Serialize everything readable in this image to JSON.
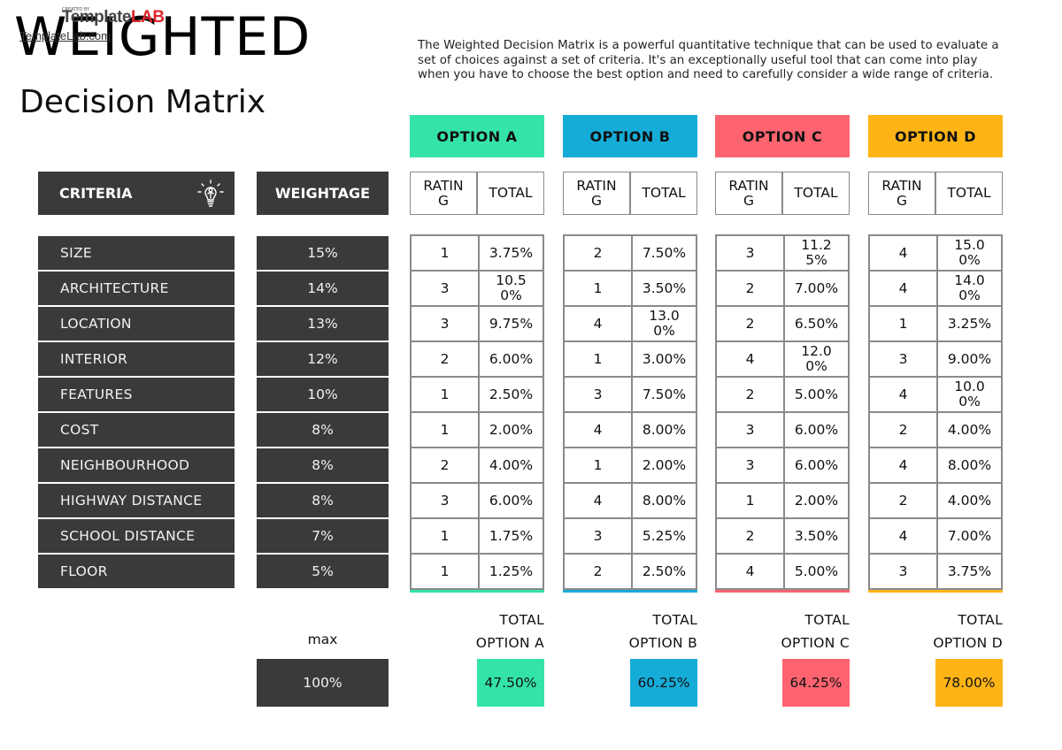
{
  "header": {
    "title_line1": "WEIGHTED",
    "title_line2": "Decision Matrix",
    "logo_text": "Template",
    "logo_accent": "LAB",
    "logo_small": "CREATED BY",
    "logo_link": "TemplateLab.com",
    "description": "The Weighted Decision Matrix is a powerful quantitative technique that can be used to evaluate a set of choices against a set of criteria. It's an exceptionally useful tool that can come into play when you have to choose the best option and need to carefully consider a wide range of criteria."
  },
  "columns": {
    "criteria_label": "CRITERIA",
    "criteria_icon": "lightbulb-icon",
    "weightage_label": "WEIGHTAGE",
    "rating_label": "RATING",
    "total_label": "TOTAL"
  },
  "criteria": [
    {
      "name": "SIZE",
      "weight": "15%"
    },
    {
      "name": "ARCHITECTURE",
      "weight": "14%"
    },
    {
      "name": "LOCATION",
      "weight": "13%"
    },
    {
      "name": "INTERIOR",
      "weight": "12%"
    },
    {
      "name": "FEATURES",
      "weight": "10%"
    },
    {
      "name": "COST",
      "weight": "8%"
    },
    {
      "name": "NEIGHBOURHOOD",
      "weight": "8%"
    },
    {
      "name": "HIGHWAY DISTANCE",
      "weight": "8%"
    },
    {
      "name": "SCHOOL DISTANCE",
      "weight": "7%"
    },
    {
      "name": "FLOOR",
      "weight": "5%"
    }
  ],
  "options": [
    {
      "label": "OPTION A",
      "color": "#34e3aa",
      "total_label_1": "TOTAL",
      "total_label_2": "OPTION A",
      "total": "47.50%",
      "rows": [
        {
          "rating": "1",
          "total": "3.75%"
        },
        {
          "rating": "3",
          "total": "10.50%"
        },
        {
          "rating": "3",
          "total": "9.75%"
        },
        {
          "rating": "2",
          "total": "6.00%"
        },
        {
          "rating": "1",
          "total": "2.50%"
        },
        {
          "rating": "1",
          "total": "2.00%"
        },
        {
          "rating": "2",
          "total": "4.00%"
        },
        {
          "rating": "3",
          "total": "6.00%"
        },
        {
          "rating": "1",
          "total": "1.75%"
        },
        {
          "rating": "1",
          "total": "1.25%"
        }
      ]
    },
    {
      "label": "OPTION B",
      "color": "#16acd8",
      "total_label_1": "TOTAL",
      "total_label_2": "OPTION B",
      "total": "60.25%",
      "rows": [
        {
          "rating": "2",
          "total": "7.50%"
        },
        {
          "rating": "1",
          "total": "3.50%"
        },
        {
          "rating": "4",
          "total": "13.00%"
        },
        {
          "rating": "1",
          "total": "3.00%"
        },
        {
          "rating": "3",
          "total": "7.50%"
        },
        {
          "rating": "4",
          "total": "8.00%"
        },
        {
          "rating": "1",
          "total": "2.00%"
        },
        {
          "rating": "4",
          "total": "8.00%"
        },
        {
          "rating": "3",
          "total": "5.25%"
        },
        {
          "rating": "2",
          "total": "2.50%"
        }
      ]
    },
    {
      "label": "OPTION C",
      "color": "#fe6470",
      "total_label_1": "TOTAL",
      "total_label_2": "OPTION C",
      "total": "64.25%",
      "rows": [
        {
          "rating": "3",
          "total": "11.25%"
        },
        {
          "rating": "2",
          "total": "7.00%"
        },
        {
          "rating": "2",
          "total": "6.50%"
        },
        {
          "rating": "4",
          "total": "12.00%"
        },
        {
          "rating": "2",
          "total": "5.00%"
        },
        {
          "rating": "3",
          "total": "6.00%"
        },
        {
          "rating": "3",
          "total": "6.00%"
        },
        {
          "rating": "1",
          "total": "2.00%"
        },
        {
          "rating": "2",
          "total": "3.50%"
        },
        {
          "rating": "4",
          "total": "5.00%"
        }
      ]
    },
    {
      "label": "OPTION D",
      "color": "#ffb416",
      "total_label_1": "TOTAL",
      "total_label_2": "OPTION D",
      "total": "78.00%",
      "rows": [
        {
          "rating": "4",
          "total": "15.00%"
        },
        {
          "rating": "4",
          "total": "14.00%"
        },
        {
          "rating": "1",
          "total": "3.25%"
        },
        {
          "rating": "3",
          "total": "9.00%"
        },
        {
          "rating": "4",
          "total": "10.00%"
        },
        {
          "rating": "2",
          "total": "4.00%"
        },
        {
          "rating": "4",
          "total": "8.00%"
        },
        {
          "rating": "2",
          "total": "4.00%"
        },
        {
          "rating": "4",
          "total": "7.00%"
        },
        {
          "rating": "3",
          "total": "3.75%"
        }
      ]
    }
  ],
  "summary": {
    "max_label": "max",
    "max_value": "100%"
  }
}
